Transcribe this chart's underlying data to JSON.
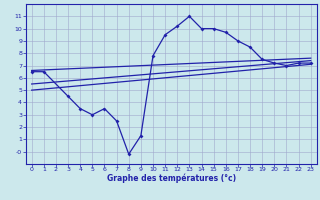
{
  "background_color": "#cce8ec",
  "grid_color": "#a0a8cc",
  "line_color": "#2222aa",
  "xlabel": "Graphe des températures (°c)",
  "xlim": [
    -0.5,
    23.5
  ],
  "ylim": [
    -1,
    12
  ],
  "yticks": [
    0,
    1,
    2,
    3,
    4,
    5,
    6,
    7,
    8,
    9,
    10,
    11
  ],
  "ytick_labels": [
    "-0",
    "1",
    "2",
    "3",
    "4",
    "5",
    "6",
    "7",
    "8",
    "9",
    "10",
    "11"
  ],
  "xticks": [
    0,
    1,
    2,
    3,
    4,
    5,
    6,
    7,
    8,
    9,
    10,
    11,
    12,
    13,
    14,
    15,
    16,
    17,
    18,
    19,
    20,
    21,
    22,
    23
  ],
  "xtick_labels": [
    "0",
    "1",
    "2",
    "3",
    "4",
    "5",
    "6",
    "7",
    "8",
    "9",
    "10",
    "11",
    "12",
    "13",
    "14",
    "15",
    "16",
    "17",
    "18",
    "19",
    "20",
    "21",
    "22",
    "23"
  ],
  "main_x": [
    0,
    1,
    3,
    4,
    5,
    6,
    7,
    8,
    9,
    10,
    11,
    12,
    13,
    14,
    15,
    16,
    17,
    18,
    19,
    20,
    21,
    22,
    23
  ],
  "main_y": [
    6.5,
    6.5,
    4.5,
    3.5,
    3.0,
    3.5,
    2.5,
    -0.2,
    1.3,
    7.8,
    9.5,
    10.2,
    11.0,
    10.0,
    10.0,
    9.7,
    9.0,
    8.5,
    7.5,
    7.2,
    7.0,
    7.2,
    7.2
  ],
  "line1_x": [
    0,
    23
  ],
  "line1_y": [
    6.6,
    7.6
  ],
  "line2_x": [
    0,
    23
  ],
  "line2_y": [
    5.5,
    7.4
  ],
  "line3_x": [
    0,
    23
  ],
  "line3_y": [
    5.0,
    7.1
  ]
}
